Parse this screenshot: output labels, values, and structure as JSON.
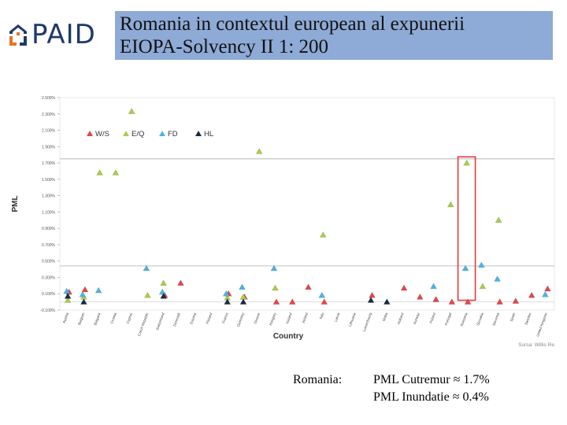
{
  "header": {
    "logo_text": "PAID",
    "title_line1": "Romania in contextul european al expunerii",
    "title_line2": "EIOPA-Solvency II 1: 200"
  },
  "footer": {
    "label": "Romania:",
    "line1_name": "PML Cutremur",
    "line1_symbol": "≈",
    "line1_value": "1.7%",
    "line2_name": "PML Inundatie",
    "line2_symbol": "≈",
    "line2_value": "0.4%"
  },
  "colors": {
    "W/S": "#e04848",
    "E/Q": "#a9cc4a",
    "FD": "#4ab4e6",
    "HL": "#1a2a44",
    "highlight": "#e23b3b",
    "logo_orange": "#e8742a",
    "logo_blue": "#1f3a6a"
  },
  "chart_data": {
    "type": "scatter",
    "ylabel": "PML",
    "xlabel": "Country",
    "source": "Sursa: Willis Re",
    "ylim": [
      -0.1,
      2.5
    ],
    "ytick_labels": [
      "-0.100%",
      "0.100%",
      "0.300%",
      "0.500%",
      "0.700%",
      "0.900%",
      "1.100%",
      "1.300%",
      "1.500%",
      "1.700%",
      "1.900%",
      "2.100%",
      "2.300%",
      "2.500%"
    ],
    "yticks": [
      -0.1,
      0.1,
      0.3,
      0.5,
      0.7,
      0.9,
      1.1,
      1.3,
      1.5,
      1.7,
      1.9,
      2.1,
      2.3,
      2.5
    ],
    "reference_lines": [
      1.75,
      0.44
    ],
    "highlight_category": "Romania",
    "series_names": [
      "W/S",
      "E/Q",
      "FD",
      "HL"
    ],
    "categories": [
      "Austria",
      "Belgium",
      "Bulgaria",
      "Croatia",
      "Cyprus",
      "Czech Republic",
      "Switzerland",
      "Denmark",
      "Estonia",
      "Finland",
      "France",
      "Germany",
      "Greece",
      "Hungary",
      "Iceland",
      "Ireland",
      "Italy",
      "Latvia",
      "Lithuania",
      "Luxembourg",
      "Malta",
      "Holland",
      "Norway",
      "Poland",
      "Portugal",
      "Romania",
      "Slovakia",
      "Slovenia",
      "Spain",
      "Sweden",
      "United Kingdom"
    ],
    "series": [
      {
        "name": "W/S",
        "values": [
          0.12,
          0.15,
          null,
          null,
          null,
          null,
          0.08,
          0.23,
          null,
          null,
          0.1,
          0.06,
          null,
          0.0,
          0.0,
          0.18,
          0.0,
          null,
          null,
          0.08,
          null,
          0.17,
          0.06,
          0.03,
          0.0,
          0.0,
          null,
          0.0,
          0.01,
          0.08,
          0.16
        ]
      },
      {
        "name": "E/Q",
        "values": [
          0.02,
          0.06,
          1.58,
          1.58,
          2.33,
          0.08,
          0.23,
          null,
          null,
          null,
          0.05,
          0.06,
          1.84,
          0.17,
          null,
          null,
          0.82,
          null,
          null,
          null,
          null,
          null,
          null,
          null,
          1.19,
          1.7,
          0.19,
          1.0,
          null,
          null,
          null
        ]
      },
      {
        "name": "FD",
        "values": [
          0.13,
          0.09,
          0.14,
          null,
          null,
          0.41,
          0.12,
          null,
          null,
          null,
          0.1,
          0.18,
          null,
          0.41,
          null,
          null,
          0.08,
          null,
          null,
          null,
          null,
          null,
          null,
          0.19,
          null,
          0.41,
          0.45,
          0.28,
          null,
          null,
          0.09
        ]
      },
      {
        "name": "HL",
        "values": [
          0.07,
          0.0,
          null,
          null,
          null,
          null,
          0.07,
          null,
          null,
          null,
          0.0,
          0.0,
          null,
          null,
          null,
          null,
          null,
          null,
          null,
          0.02,
          0.0,
          null,
          null,
          null,
          null,
          null,
          null,
          null,
          null,
          null,
          null
        ]
      }
    ]
  }
}
